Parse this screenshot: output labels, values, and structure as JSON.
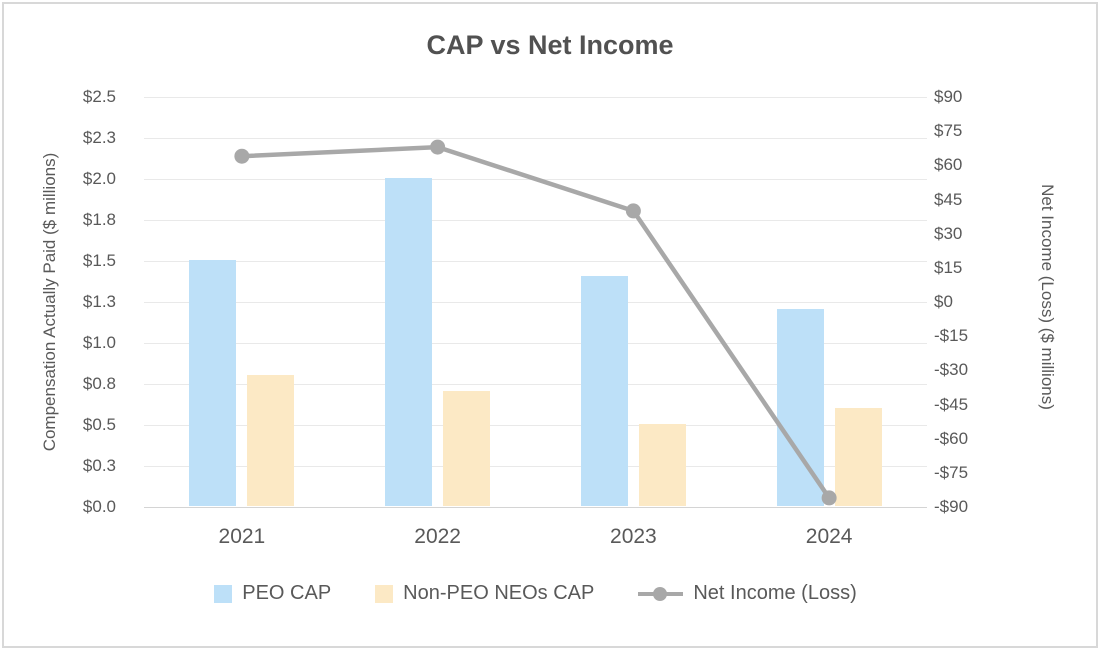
{
  "title": "CAP vs Net Income",
  "colors": {
    "peo_bar": "#bde0f8",
    "non_peo_bar": "#fce9c5",
    "net_income_line": "#a8a8a8",
    "grid": "#e9e9e9",
    "axis_line": "#d4d4d4",
    "text": "#595959",
    "title_text": "#515151",
    "frame_border": "#d8d8d8"
  },
  "chart_data": {
    "type": "bar",
    "subtype": "combo-bar-line-dual-axis",
    "title": "CAP vs Net Income",
    "categories": [
      "2021",
      "2022",
      "2023",
      "2024"
    ],
    "series": [
      {
        "name": "PEO CAP",
        "type": "bar",
        "axis": "left",
        "color": "#bde0f8",
        "values": [
          1.5,
          2.0,
          1.4,
          1.2
        ]
      },
      {
        "name": "Non-PEO NEOs CAP",
        "type": "bar",
        "axis": "left",
        "color": "#fce9c5",
        "values": [
          0.8,
          0.7,
          0.5,
          0.6
        ]
      },
      {
        "name": "Net Income (Loss)",
        "type": "line",
        "axis": "right",
        "color": "#a8a8a8",
        "values": [
          64,
          68,
          40,
          -86
        ]
      }
    ],
    "left_axis": {
      "title": "Compensation Actually Paid ($ millions)",
      "min": 0,
      "max": 2.5,
      "tick_step": 0.25,
      "tick_labels": [
        "$2.5",
        "$2.3",
        "$2.0",
        "$1.8",
        "$1.5",
        "$1.3",
        "$1.0",
        "$0.8",
        "$0.5",
        "$0.3",
        "$0.0"
      ]
    },
    "right_axis": {
      "title": "Net Income (Loss) ($ millions)",
      "min": -90,
      "max": 90,
      "tick_step": 15,
      "tick_labels": [
        "$90",
        "$75",
        "$60",
        "$45",
        "$30",
        "$15",
        "$0",
        "-$15",
        "-$30",
        "-$45",
        "-$60",
        "-$75",
        "-$90"
      ]
    },
    "grid": "horizontal",
    "legend_position": "bottom",
    "legend": [
      "PEO CAP",
      "Non-PEO NEOs CAP",
      "Net Income (Loss)"
    ]
  }
}
